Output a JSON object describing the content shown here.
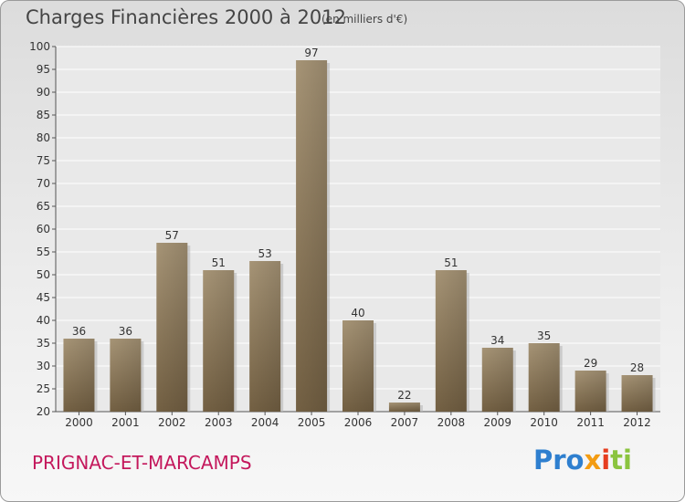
{
  "header": {
    "title": "Charges Financières 2000 à 2012",
    "subtitle": "(en milliers d'€)"
  },
  "commune": "PRIGNAC-ET-MARCAMPS",
  "logo": {
    "parts": [
      "Pro",
      "x",
      "i",
      "ti"
    ]
  },
  "colors": {
    "bar": "#8e7b5e",
    "commune": "#c4185c"
  },
  "chart_data": {
    "type": "bar",
    "categories": [
      "2000",
      "2001",
      "2002",
      "2003",
      "2004",
      "2005",
      "2006",
      "2007",
      "2008",
      "2009",
      "2010",
      "2011",
      "2012"
    ],
    "values": [
      36,
      36,
      57,
      51,
      53,
      97,
      40,
      22,
      51,
      34,
      35,
      29,
      28
    ],
    "title": "Charges Financières 2000 à 2012",
    "ylim": [
      20,
      100
    ],
    "yticks": [
      20,
      25,
      30,
      35,
      40,
      45,
      50,
      55,
      60,
      65,
      70,
      75,
      80,
      85,
      90,
      95,
      100
    ],
    "grid": true
  }
}
